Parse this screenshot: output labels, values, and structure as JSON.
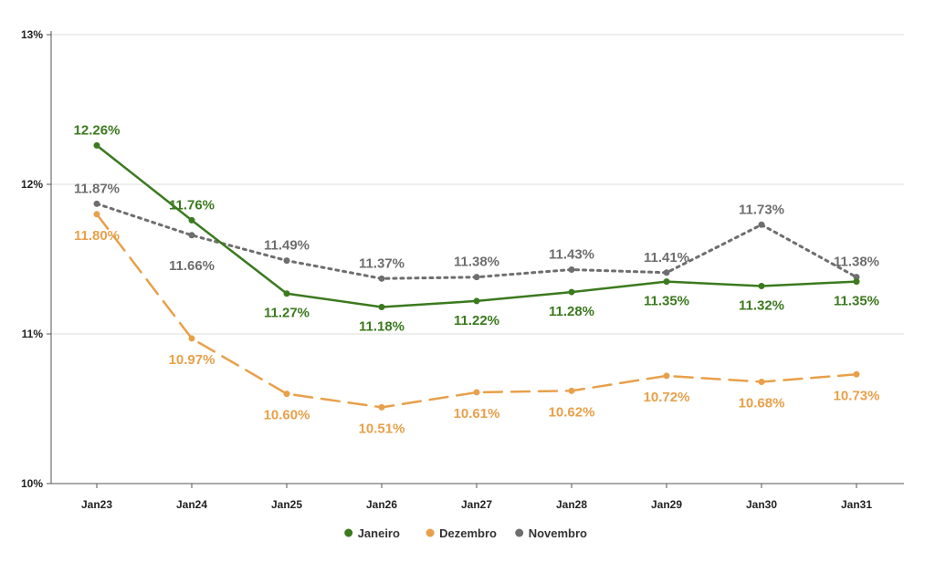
{
  "chart_data": {
    "type": "line",
    "categories": [
      "Jan23",
      "Jan24",
      "Jan25",
      "Jan26",
      "Jan27",
      "Jan28",
      "Jan29",
      "Jan30",
      "Jan31"
    ],
    "y_ticks": [
      "10%",
      "11%",
      "12%",
      "13%"
    ],
    "ylim": [
      10,
      13
    ],
    "grid": true,
    "legend_position": "bottom-center",
    "series": [
      {
        "name": "Janeiro",
        "color": "#3b7a1e",
        "style": "solid",
        "values": [
          12.26,
          11.76,
          11.27,
          11.18,
          11.22,
          11.28,
          11.35,
          11.32,
          11.35
        ],
        "labels": [
          "12.26%",
          "11.76%",
          "11.27%",
          "11.18%",
          "11.22%",
          "11.28%",
          "11.35%",
          "11.32%",
          "11.35%"
        ]
      },
      {
        "name": "Dezembro",
        "color": "#e8a04a",
        "style": "dashed",
        "values": [
          11.8,
          10.97,
          10.6,
          10.51,
          10.61,
          10.62,
          10.72,
          10.68,
          10.73
        ],
        "labels": [
          "11.80%",
          "10.97%",
          "10.60%",
          "10.51%",
          "10.61%",
          "10.62%",
          "10.72%",
          "10.68%",
          "10.73%"
        ]
      },
      {
        "name": "Novembro",
        "color": "#6e6e6e",
        "style": "dotted",
        "values": [
          11.87,
          11.66,
          11.49,
          11.37,
          11.38,
          11.43,
          11.41,
          11.73,
          11.38
        ],
        "labels": [
          "11.87%",
          "11.66%",
          "11.49%",
          "11.37%",
          "11.38%",
          "11.43%",
          "11.41%",
          "11.73%",
          "11.38%"
        ]
      }
    ]
  }
}
